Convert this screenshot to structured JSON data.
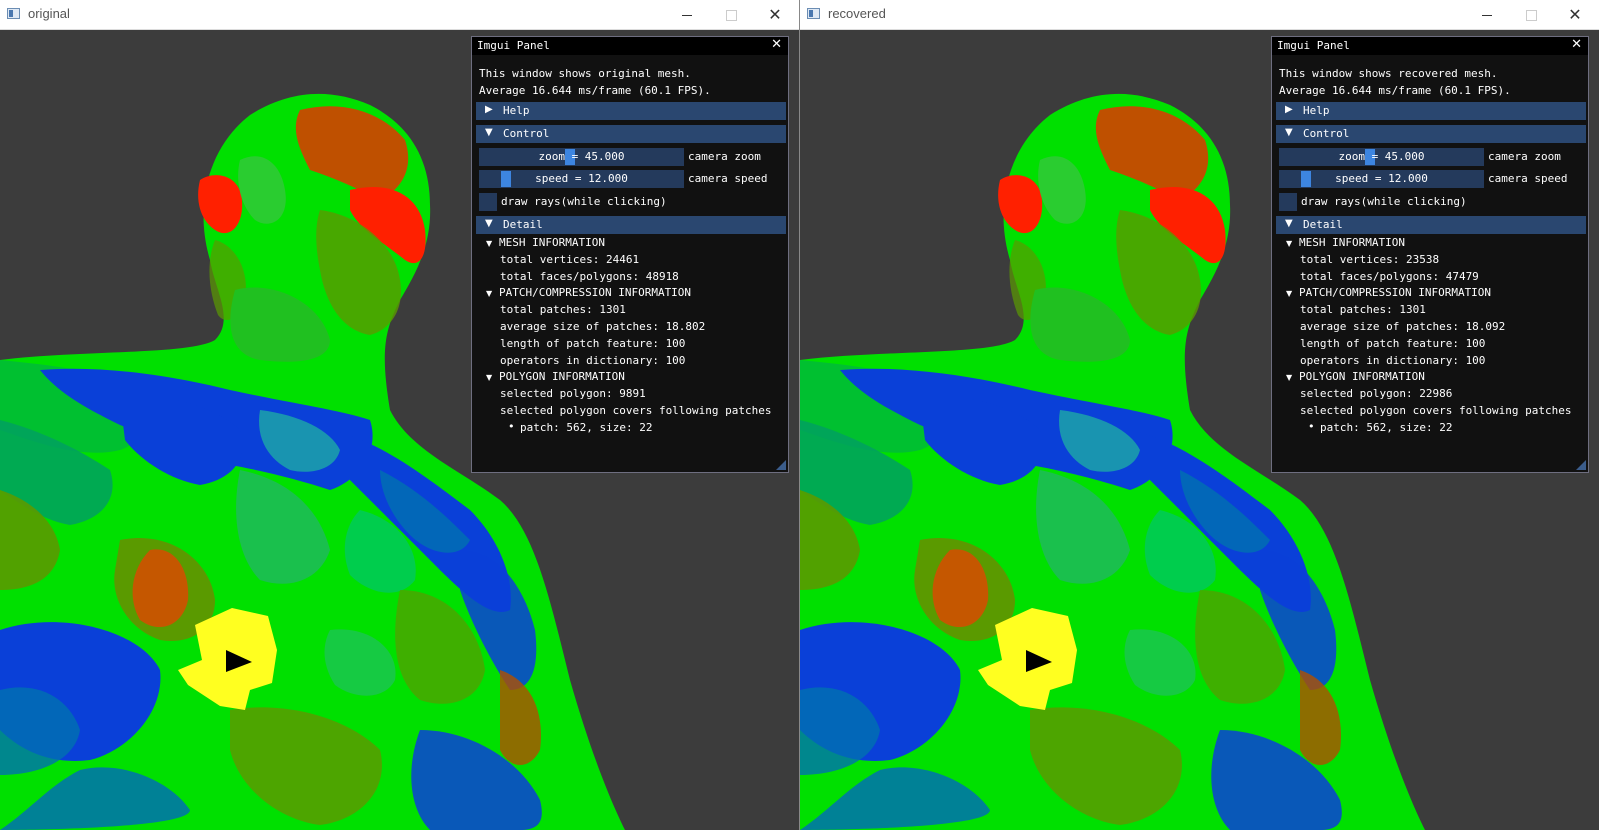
{
  "windows": [
    {
      "title": "original",
      "panel": {
        "title": "Imgui Panel",
        "description": "This window shows original mesh.",
        "fps_text": "Average 16.644 ms/frame (60.1 FPS).",
        "help_label": "Help",
        "control_label": "Control",
        "zoom_text": "zoom = 45.000",
        "zoom_label": "camera zoom",
        "speed_text": "speed = 12.000",
        "speed_label": "camera speed",
        "draw_rays_label": "draw rays(while clicking)",
        "detail_label": "Detail",
        "mesh_header": "MESH INFORMATION",
        "total_vertices": "total vertices: 24461",
        "total_faces": "total faces/polygons: 48918",
        "patch_header": "PATCH/COMPRESSION INFORMATION",
        "total_patches": "total patches: 1301",
        "avg_patch_size": "average size of patches: 18.802",
        "patch_feature_length": "length of patch feature: 100",
        "dict_operators": "operators in dictionary: 100",
        "polygon_header": "POLYGON INFORMATION",
        "selected_polygon": "selected polygon: 9891",
        "covers_text": "selected polygon covers following patches",
        "patch_item": "patch: 562, size: 22"
      }
    },
    {
      "title": "recovered",
      "panel": {
        "title": "Imgui Panel",
        "description": "This window shows recovered mesh.",
        "fps_text": "Average 16.644 ms/frame (60.1 FPS).",
        "help_label": "Help",
        "control_label": "Control",
        "zoom_text": "zoom = 45.000",
        "zoom_label": "camera zoom",
        "speed_text": "speed = 12.000",
        "speed_label": "camera speed",
        "draw_rays_label": "draw rays(while clicking)",
        "detail_label": "Detail",
        "mesh_header": "MESH INFORMATION",
        "total_vertices": "total vertices: 23538",
        "total_faces": "total faces/polygons: 47479",
        "patch_header": "PATCH/COMPRESSION INFORMATION",
        "total_patches": "total patches: 1301",
        "avg_patch_size": "average size of patches: 18.092",
        "patch_feature_length": "length of patch feature: 100",
        "dict_operators": "operators in dictionary: 100",
        "polygon_header": "POLYGON INFORMATION",
        "selected_polygon": "selected polygon: 22986",
        "covers_text": "selected polygon covers following patches",
        "patch_item": "patch: 562, size: 22"
      }
    }
  ],
  "icons": {
    "window_icon": "app-window-icon",
    "minimize": "minimize-icon",
    "maximize": "maximize-icon",
    "close": "close-icon",
    "tree_collapsed": "triangle-right-icon",
    "tree_expanded": "triangle-down-icon",
    "cursor": "mouse-cursor-icon"
  },
  "colors": {
    "viewport_bg": "#3c3c3c",
    "panel_bg": "#0f0f0f",
    "header_bg": "#2a4770",
    "slider_grab": "#3d85e0",
    "mesh_green": "#00e000",
    "mesh_blue": "#0a40d8",
    "mesh_red": "#ff2000",
    "mesh_olive": "#5a9a00",
    "highlight_yellow": "#ffff20"
  }
}
